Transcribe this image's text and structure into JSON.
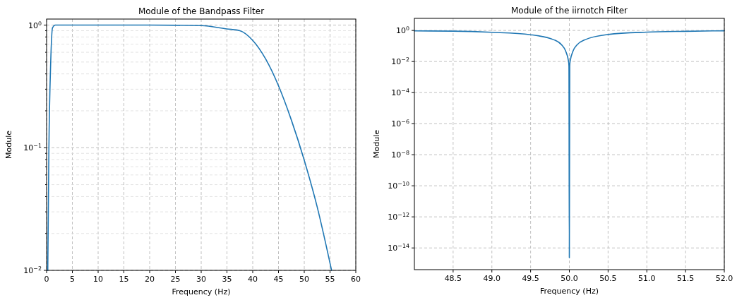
{
  "chart_data": [
    {
      "type": "line",
      "title": "Module of the Bandpass Filter",
      "xlabel": "Frequency (Hz)",
      "ylabel": "Module",
      "log": "y",
      "grid": true,
      "xlim": [
        0,
        60
      ],
      "xticks": [
        0,
        5,
        10,
        15,
        20,
        25,
        30,
        35,
        40,
        45,
        50,
        55,
        60
      ],
      "ylim": [
        0.01,
        1.12
      ],
      "yticks": [
        {
          "value": 0.01,
          "label": "10$^{−2}$"
        },
        {
          "value": 0.02,
          "label": null
        },
        {
          "value": 0.03,
          "label": null
        },
        {
          "value": 0.04,
          "label": null
        },
        {
          "value": 0.05,
          "label": null
        },
        {
          "value": 0.06,
          "label": null
        },
        {
          "value": 0.07,
          "label": null
        },
        {
          "value": 0.08,
          "label": null
        },
        {
          "value": 0.09,
          "label": null
        },
        {
          "value": 0.1,
          "label": "10$^{−1}$"
        },
        {
          "value": 0.2,
          "label": null
        },
        {
          "value": 0.3,
          "label": null
        },
        {
          "value": 0.4,
          "label": null
        },
        {
          "value": 0.5,
          "label": null
        },
        {
          "value": 0.6,
          "label": null
        },
        {
          "value": 0.7,
          "label": null
        },
        {
          "value": 0.8,
          "label": null
        },
        {
          "value": 0.9,
          "label": null
        },
        {
          "value": 1,
          "label": "10$^{0}$"
        }
      ],
      "series": [
        {
          "color": "#1f77b4",
          "x": [
            0.23,
            0.45,
            0.8,
            1.15,
            1.7,
            5,
            10,
            20,
            30,
            35,
            37.5,
            40,
            42.5,
            45,
            47.5,
            50,
            52.5,
            55.3
          ],
          "values": [
            0.01,
            0.1,
            0.5,
            0.95,
            1.0,
            1.0,
            1.0,
            1.0,
            0.99,
            0.93,
            0.9,
            0.75,
            0.53,
            0.32,
            0.168,
            0.079,
            0.033,
            0.01
          ]
        }
      ]
    },
    {
      "type": "line",
      "title": "Module of the iirnotch Filter",
      "xlabel": "Frequency (Hz)",
      "ylabel": "Module",
      "log": "y",
      "grid": true,
      "xlim": [
        48.0,
        52.0
      ],
      "xticks": [
        {
          "value": 48.5,
          "label": "48.5"
        },
        {
          "value": 49.0,
          "label": "49.0"
        },
        {
          "value": 49.5,
          "label": "49.5"
        },
        {
          "value": 50.0,
          "label": "50.0"
        },
        {
          "value": 50.5,
          "label": "50.5"
        },
        {
          "value": 51.0,
          "label": "51.0"
        },
        {
          "value": 51.5,
          "label": "51.5"
        },
        {
          "value": 52.0,
          "label": "52.0"
        }
      ],
      "ylim": [
        4e-16,
        6
      ],
      "yticks": [
        {
          "value": 1e-14,
          "label": "10$^{−14}$"
        },
        {
          "value": 1e-12,
          "label": "10$^{−12}$"
        },
        {
          "value": 1e-10,
          "label": "10$^{−10}$"
        },
        {
          "value": 1e-08,
          "label": "10$^{−8}$"
        },
        {
          "value": 1e-06,
          "label": "10$^{−6}$"
        },
        {
          "value": 0.0001,
          "label": "10$^{−4}$"
        },
        {
          "value": 0.01,
          "label": "10$^{−2}$"
        },
        {
          "value": 1,
          "label": "10$^{0}$"
        }
      ],
      "series": [
        {
          "color": "#1f77b4",
          "x": [
            48.0,
            48.5,
            49.0,
            49.5,
            49.8,
            49.9,
            49.95,
            49.99,
            49.995,
            50.0,
            50.005,
            50.01,
            50.05,
            50.1,
            50.2,
            50.5,
            51.0,
            51.5,
            52.0
          ],
          "values": [
            0.93,
            0.9,
            0.76,
            0.53,
            0.25,
            0.12,
            0.05,
            0.01,
            0.005,
            2.3e-15,
            0.005,
            0.01,
            0.05,
            0.12,
            0.25,
            0.55,
            0.78,
            0.88,
            0.95
          ]
        }
      ]
    }
  ]
}
